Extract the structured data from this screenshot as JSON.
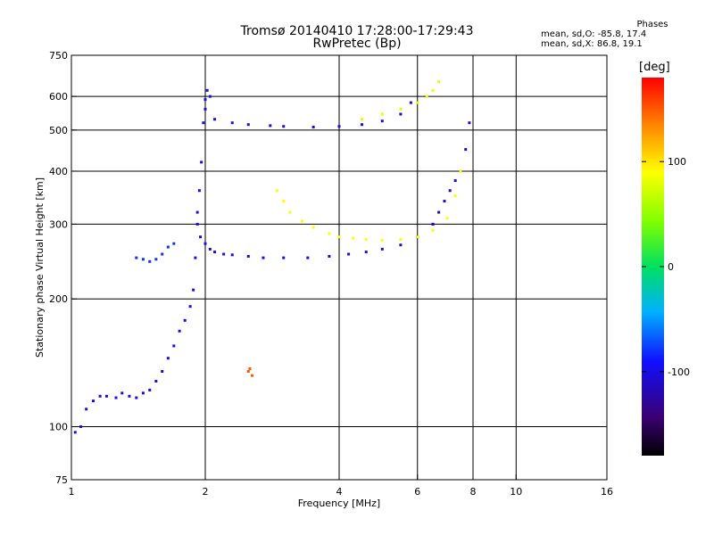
{
  "header": {
    "title_line1": "Tromsø 20140410 17:28:00-17:29:43",
    "title_line2": "RwPretec (Bp)"
  },
  "phases": {
    "title": "Phases",
    "line_o": "mean, sd,O: -85.8, 17.4",
    "line_x": "mean, sd,X:  86.8, 19.1"
  },
  "colorbar": {
    "unit": "[deg]",
    "tick_labels": [
      "100",
      "0",
      "-100"
    ]
  },
  "chart_data": {
    "type": "scatter",
    "xlabel": "Frequency [MHz]",
    "ylabel": "Stationary phase Virtual Height [km]",
    "x_scale": "log",
    "y_scale": "log",
    "xlim": [
      1,
      16
    ],
    "ylim": [
      75,
      750
    ],
    "x_ticks": [
      1,
      2,
      4,
      6,
      8,
      10,
      16
    ],
    "x_tick_labels": [
      "1",
      "2",
      "4",
      "6",
      "8",
      "10",
      "16"
    ],
    "y_ticks": [
      75,
      100,
      200,
      300,
      400,
      500,
      600,
      750
    ],
    "y_tick_labels": [
      "75",
      "100",
      "200",
      "300",
      "400",
      "500",
      "600",
      "750"
    ],
    "grid": true,
    "color_scale": "phase in degrees, rainbow from -180 (black/purple) to 180 (red)",
    "clim": [
      -180,
      180
    ],
    "traces": [
      {
        "x": [
          1.02,
          1.05,
          1.08,
          1.12,
          1.16,
          1.2,
          1.26,
          1.3,
          1.35,
          1.4,
          1.45,
          1.5,
          1.55,
          1.6,
          1.65,
          1.7,
          1.75,
          1.8,
          1.85,
          1.88,
          1.9,
          1.92,
          1.94,
          1.96,
          1.98,
          2.0,
          2.02,
          2.05
        ],
        "y": [
          97,
          100,
          110,
          115,
          118,
          118,
          117,
          120,
          118,
          117,
          120,
          122,
          128,
          135,
          145,
          155,
          168,
          178,
          192,
          210,
          250,
          300,
          360,
          420,
          520,
          590,
          620,
          600
        ],
        "phase": -100
      },
      {
        "x": [
          1.92,
          1.95,
          2.0,
          2.05,
          2.1,
          2.2,
          2.3,
          2.5,
          2.7,
          3.0,
          3.4,
          3.8,
          4.2,
          4.6,
          5.0,
          5.5,
          6.0,
          6.5
        ],
        "y": [
          320,
          280,
          270,
          262,
          258,
          255,
          254,
          252,
          250,
          250,
          250,
          252,
          255,
          258,
          262,
          268,
          280,
          300
        ],
        "phase": -100
      },
      {
        "x": [
          6.5,
          6.7,
          6.9,
          7.1,
          7.3,
          7.5,
          7.7,
          7.85
        ],
        "y": [
          300,
          320,
          340,
          360,
          380,
          400,
          450,
          520
        ],
        "phase": -110
      },
      {
        "x": [
          2.0,
          2.1,
          2.3,
          2.5,
          2.8,
          3.0,
          3.5,
          4.0,
          4.5,
          5.0,
          5.5,
          5.8
        ],
        "y": [
          560,
          530,
          520,
          515,
          512,
          510,
          508,
          510,
          515,
          525,
          545,
          580
        ],
        "phase": -105
      },
      {
        "x": [
          2.9,
          3.0,
          3.1,
          3.3,
          3.5,
          3.8,
          4.0,
          4.3,
          4.6,
          5.0,
          5.5,
          6.0,
          6.5,
          7.0,
          7.3,
          7.5
        ],
        "y": [
          360,
          340,
          320,
          305,
          295,
          285,
          280,
          278,
          276,
          275,
          276,
          280,
          290,
          310,
          350,
          400
        ],
        "phase": 90
      },
      {
        "x": [
          4.5,
          5.0,
          5.5,
          6.0,
          6.3,
          6.5,
          6.7
        ],
        "y": [
          530,
          545,
          560,
          580,
          600,
          620,
          650
        ],
        "phase": 80
      },
      {
        "x": [
          1.4,
          1.45,
          1.5,
          1.55,
          1.6,
          1.65,
          1.7
        ],
        "y": [
          250,
          248,
          245,
          248,
          255,
          265,
          270
        ],
        "phase": -80
      },
      {
        "x": [
          2.5,
          2.52,
          2.55
        ],
        "y": [
          135,
          137,
          132
        ],
        "phase": 150
      }
    ]
  }
}
